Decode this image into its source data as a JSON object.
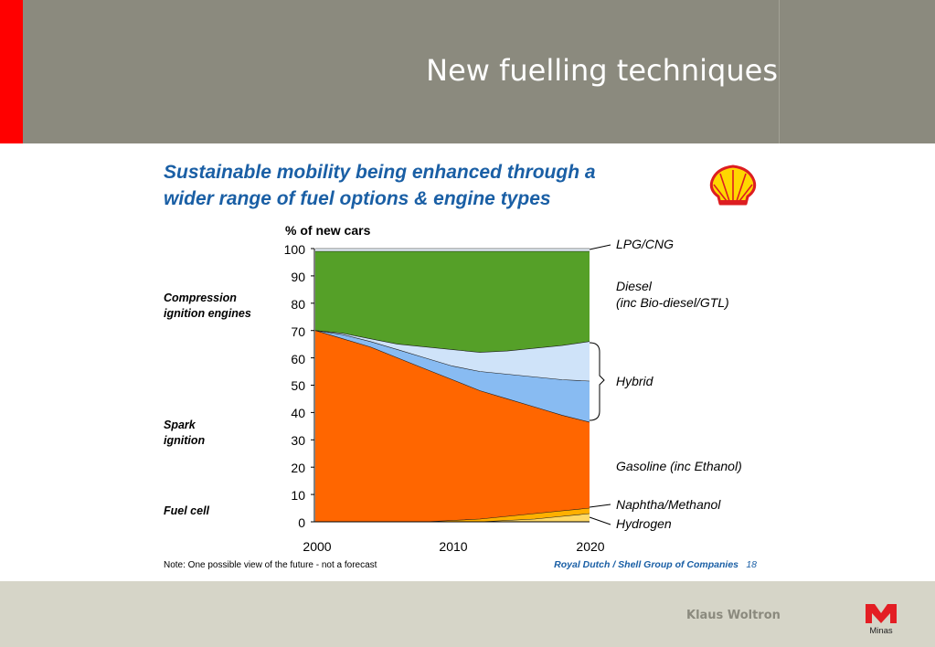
{
  "slide": {
    "title": "New fuelling techniques",
    "author": "Klaus Woltron",
    "logo_text": "Minas"
  },
  "colors": {
    "header": "#8b8a7e",
    "accent_red": "#ff0000",
    "footer": "#d6d5c8",
    "heading_blue": "#1a5fa5"
  },
  "chart_data": {
    "type": "area",
    "title": "Sustainable mobility being enhanced through a wider range of fuel options & engine types",
    "title_lines": [
      "Sustainable mobility being enhanced through a",
      "wider range of fuel options & engine types"
    ],
    "ylabel": "% of new cars",
    "ylim": [
      0,
      100
    ],
    "yticks": [
      0,
      10,
      20,
      30,
      40,
      50,
      60,
      70,
      80,
      90,
      100
    ],
    "xlim": [
      2000,
      2020
    ],
    "xticks": [
      2000,
      2010,
      2020
    ],
    "x": [
      2000,
      2002,
      2004,
      2006,
      2008,
      2010,
      2012,
      2014,
      2016,
      2018,
      2020
    ],
    "stacking": "cumulative boundaries (% of new cars)",
    "series": [
      {
        "name": "Hydrogen",
        "color": "#ffd966",
        "upper": [
          0,
          0,
          0,
          0,
          0,
          0,
          0,
          0.5,
          1,
          2,
          3
        ]
      },
      {
        "name": "Naphtha/Methanol",
        "color": "#ffb000",
        "upper": [
          0,
          0,
          0,
          0,
          0,
          0.5,
          1,
          2,
          3,
          4,
          5
        ]
      },
      {
        "name": "Gasoline (inc Ethanol)",
        "color": "#ff6600",
        "upper": [
          70,
          67,
          64,
          60,
          56,
          52,
          48,
          45,
          42,
          39,
          36.5
        ]
      },
      {
        "name": "Hybrid (dark)",
        "color": "#88bbf2",
        "upper": [
          70,
          68.5,
          66,
          63,
          60,
          57,
          55,
          54,
          53,
          52,
          51.5
        ]
      },
      {
        "name": "Hybrid (light)",
        "color": "#cfe3f9",
        "upper": [
          70,
          69,
          67,
          65,
          64,
          63,
          62,
          62.5,
          63.5,
          64.5,
          66
        ]
      },
      {
        "name": "Diesel (inc Bio-diesel/GTL)",
        "color": "#55a028",
        "upper": [
          99,
          99,
          99,
          99,
          99,
          99,
          99,
          99,
          99,
          99,
          99
        ]
      },
      {
        "name": "LPG/CNG",
        "color": "#e8f2fa",
        "upper": [
          100,
          100,
          100,
          100,
          100,
          100,
          100,
          100,
          100,
          100,
          100
        ]
      }
    ],
    "right_labels": {
      "lpg": "LPG/CNG",
      "diesel_1": "Diesel",
      "diesel_2": "(inc Bio-diesel/GTL)",
      "hybrid": "Hybrid",
      "gasoline": "Gasoline (inc Ethanol)",
      "naphtha": "Naphtha/Methanol",
      "hydrogen": "Hydrogen"
    },
    "left_labels": {
      "compression_1": "Compression",
      "compression_2": "ignition engines",
      "spark_1": "Spark",
      "spark_2": "ignition",
      "fuelcell": "Fuel cell"
    },
    "note": "Note: One possible view of the future - not a forecast",
    "source": "Royal Dutch / Shell Group of Companies",
    "page_number": "18"
  }
}
